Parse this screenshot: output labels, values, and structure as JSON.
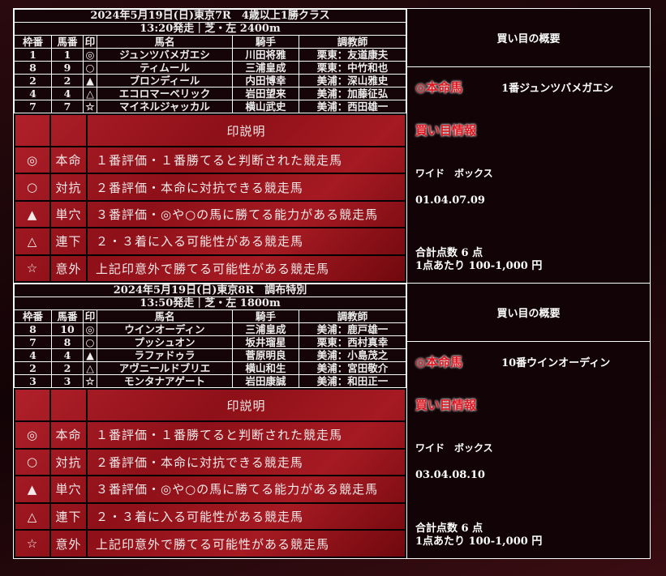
{
  "columns": [
    "枠番",
    "馬番",
    "印",
    "馬名",
    "騎手",
    "調教師"
  ],
  "legend": {
    "header": "印説明",
    "rows": [
      {
        "mark": "◎",
        "name": "本命",
        "desc": "１番評価・１番勝てると判断された競走馬"
      },
      {
        "mark": "○",
        "name": "対抗",
        "desc": "２番評価・本命に対抗できる競走馬"
      },
      {
        "mark": "▲",
        "name": "単穴",
        "desc": "３番評価・◎や○の馬に勝てる能力がある競走馬"
      },
      {
        "mark": "△",
        "name": "連下",
        "desc": "２・３着に入る可能性がある競走馬"
      },
      {
        "mark": "☆",
        "name": "意外",
        "desc": "上記印意外で勝てる可能性がある競走馬"
      }
    ]
  },
  "races": [
    {
      "title": "2024年5月19日(日)東京7R　4歳以上1勝クラス",
      "info": "13:20発走｜芝・左 2400m",
      "entries": [
        [
          "1",
          "1",
          "◎",
          "ジュンツバメガエシ",
          "川田将雅",
          "栗東：友道康夫"
        ],
        [
          "8",
          "9",
          "○",
          "ティムール",
          "三浦皇成",
          "栗東：中竹和也"
        ],
        [
          "2",
          "2",
          "▲",
          "ブロンディール",
          "内田博幸",
          "美浦：深山雅史"
        ],
        [
          "4",
          "4",
          "△",
          "エコロマーベリック",
          "岩田望来",
          "美浦：加藤征弘"
        ],
        [
          "7",
          "7",
          "☆",
          "マイネルジャッカル",
          "横山武史",
          "美浦：西田雄一"
        ]
      ],
      "summary_title": "買い目の概要",
      "honmei_label": "◎本命馬",
      "honmei_name": "1番ジュンツバメガエシ",
      "kaime_label": "買い目情報",
      "bet_type": "ワイド　ボックス",
      "combo": "01.04.07.09",
      "total_points": "合計点数 6 点",
      "per_point": "1点あたり 100-1,000 円"
    },
    {
      "title": "2024年5月19日(日)東京8R　調布特別",
      "info": "13:50発走｜芝・左 1800m",
      "entries": [
        [
          "8",
          "10",
          "◎",
          "ウインオーディン",
          "三浦皇成",
          "美浦：鹿戸雄一"
        ],
        [
          "7",
          "8",
          "○",
          "プッシュオン",
          "坂井瑠星",
          "栗東：西村真幸"
        ],
        [
          "4",
          "4",
          "▲",
          "ラファドゥラ",
          "菅原明良",
          "美浦：小島茂之"
        ],
        [
          "2",
          "2",
          "△",
          "アヴニールドブリエ",
          "横山和生",
          "美浦：宮田敬介"
        ],
        [
          "3",
          "3",
          "☆",
          "モンタナアゲート",
          "岩田康誠",
          "美浦：和田正一"
        ]
      ],
      "summary_title": "買い目の概要",
      "honmei_label": "◎本命馬",
      "honmei_name": "10番ウインオーディン",
      "kaime_label": "買い目情報",
      "bet_type": "ワイド　ボックス",
      "combo": "03.04.08.10",
      "total_points": "合計点数 6 点",
      "per_point": "1点あたり 100-1,000 円"
    }
  ]
}
